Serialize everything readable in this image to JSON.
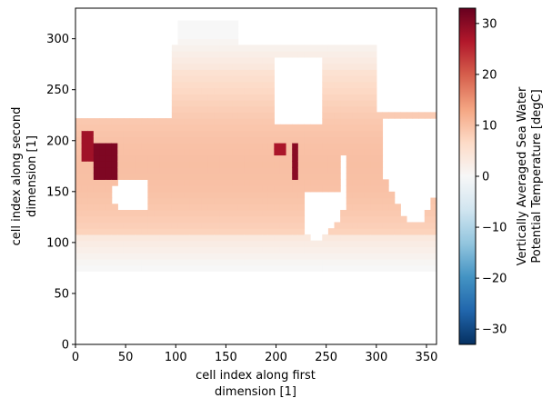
{
  "chart_data": {
    "type": "heatmap",
    "title": "",
    "xlabel_lines": [
      "cell index along first",
      "dimension [1]"
    ],
    "ylabel_lines": [
      "cell index along second",
      "dimension [1]"
    ],
    "xlim": [
      0,
      360
    ],
    "ylim": [
      0,
      330
    ],
    "x_ticks": [
      0,
      50,
      100,
      150,
      200,
      250,
      300,
      350
    ],
    "y_ticks": [
      0,
      50,
      100,
      150,
      200,
      250,
      300
    ],
    "colorbar": {
      "label_lines": [
        "Vertically Averaged Sea Water",
        "Potential Temperature [degC]"
      ],
      "vmin": -33,
      "vmax": 33,
      "ticks": [
        -30,
        -20,
        -10,
        0,
        10,
        20,
        30
      ],
      "tick_labels": [
        "−30",
        "−20",
        "−10",
        "0",
        "10",
        "20",
        "30"
      ],
      "colormap": "RdBu_r",
      "colors": [
        "#053061",
        "#2166ac",
        "#4393c3",
        "#92c5de",
        "#d1e5f0",
        "#f7f7f7",
        "#fddbc7",
        "#f4a582",
        "#d6604d",
        "#b2182b",
        "#67001f"
      ]
    },
    "nan_color": "#ffffff",
    "field_description_values": {
      "ocean_temperature_range_approx": [
        -2,
        33
      ],
      "tropical_band_value_approx": 8,
      "polar_value_approx": 0,
      "marginal_sea_value_approx": 30
    }
  }
}
